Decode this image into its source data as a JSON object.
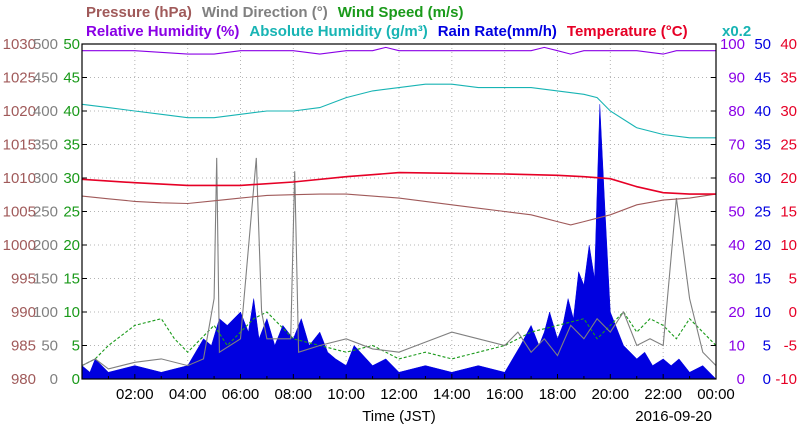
{
  "chart_data": {
    "type": "line",
    "header": {
      "row1": [
        {
          "text": "Pressure (hPa)",
          "color": "#a05a5a"
        },
        {
          "text": "Wind Direction (°)",
          "color": "#808080"
        },
        {
          "text": "Wind Speed (m/s)",
          "color": "#1a9a1a"
        }
      ],
      "row2": [
        {
          "text": "Relative Humidity (%)",
          "color": "#8a00e6"
        },
        {
          "text": "Absolute Humidity (g/m³)",
          "color": "#18b4b4"
        },
        {
          "text": "Rain Rate(mm/h)",
          "color": "#0000e0"
        },
        {
          "text": "Temperature (°C)",
          "color": "#e60026"
        }
      ],
      "scale_note": {
        "text": "x0.2",
        "color": "#18b4b4"
      }
    },
    "axes": {
      "pressure": {
        "ticks": [
          "980",
          "985",
          "990",
          "995",
          "1000",
          "1005",
          "1010",
          "1015",
          "1020",
          "1025",
          "1030"
        ],
        "range": [
          980,
          1030
        ],
        "color": "#a05a5a"
      },
      "wind_direction": {
        "ticks": [
          "0",
          "50",
          "100",
          "150",
          "200",
          "250",
          "300",
          "350",
          "400",
          "450",
          "500"
        ],
        "range": [
          0,
          500
        ],
        "color": "#808080"
      },
      "wind_speed": {
        "ticks": [
          "0",
          "5",
          "10",
          "15",
          "20",
          "25",
          "30",
          "35",
          "40",
          "45",
          "50"
        ],
        "range": [
          0,
          50
        ],
        "color": "#1a9a1a"
      },
      "humidity": {
        "ticks": [
          "0",
          "10",
          "20",
          "30",
          "40",
          "50",
          "60",
          "70",
          "80",
          "90",
          "100"
        ],
        "range": [
          0,
          100
        ],
        "color": "#8a00e6"
      },
      "rain_rate": {
        "ticks": [
          "0",
          "5",
          "10",
          "15",
          "20",
          "25",
          "30",
          "35",
          "40",
          "45",
          "50"
        ],
        "range": [
          0,
          50
        ],
        "color": "#0000e0"
      },
      "temperature": {
        "ticks": [
          "-10",
          "-5",
          "0",
          "5",
          "10",
          "15",
          "20",
          "25",
          "30",
          "35",
          "40"
        ],
        "range": [
          -10,
          40
        ],
        "color": "#e60026"
      }
    },
    "x_ticks": [
      "02:00",
      "04:00",
      "06:00",
      "08:00",
      "10:00",
      "12:00",
      "14:00",
      "16:00",
      "18:00",
      "20:00",
      "22:00",
      "00:00"
    ],
    "x_range_hours": [
      0,
      24
    ],
    "xlabel": "Time (JST)",
    "date": "2016-09-20",
    "grid": true,
    "series": [
      {
        "name": "Relative Humidity (%)",
        "axis": "humidity",
        "color": "#8a00e6",
        "x": [
          0,
          2,
          4,
          5,
          6,
          8,
          9,
          10,
          11,
          11.5,
          12,
          13,
          14,
          15,
          16,
          17,
          17.5,
          18,
          18.5,
          19,
          20,
          21,
          22,
          22.5,
          23,
          24
        ],
        "y": [
          98,
          98,
          97,
          97,
          98,
          98,
          97,
          98,
          98,
          99,
          98,
          98,
          98,
          98,
          98,
          98,
          99,
          98,
          97,
          98,
          98,
          98,
          97,
          98,
          98,
          98
        ]
      },
      {
        "name": "Absolute Humidity (g/m³)",
        "axis": "humidity",
        "color": "#18b4b4",
        "x": [
          0,
          1,
          2,
          3,
          4,
          5,
          6,
          7,
          8,
          9,
          10,
          11,
          12,
          13,
          14,
          15,
          16,
          17,
          18,
          19,
          19.5,
          20,
          21,
          22,
          23,
          24
        ],
        "y": [
          82,
          81,
          80,
          79,
          78,
          78,
          79,
          80,
          80,
          81,
          84,
          86,
          87,
          88,
          88,
          87,
          87,
          87,
          86,
          85,
          84,
          80,
          75,
          73,
          72,
          72
        ]
      },
      {
        "name": "Temperature (°C)",
        "axis": "temperature",
        "color": "#e60026",
        "x": [
          0,
          2,
          4,
          6,
          8,
          10,
          12,
          14,
          16,
          18,
          19,
          20,
          21,
          22,
          23,
          24
        ],
        "y": [
          19.8,
          19.3,
          18.9,
          18.9,
          19.4,
          20.2,
          20.8,
          20.7,
          20.6,
          20.4,
          20.2,
          19.9,
          18.7,
          17.8,
          17.6,
          17.6
        ]
      },
      {
        "name": "Pressure (hPa)",
        "axis": "pressure",
        "color": "#a05a5a",
        "x": [
          0,
          1,
          2,
          3,
          4,
          5,
          6,
          7,
          8,
          9,
          10,
          11,
          12,
          13,
          14,
          15,
          16,
          17,
          17.5,
          18,
          18.5,
          19,
          19.5,
          20,
          21,
          22,
          23,
          24
        ],
        "y": [
          1007.3,
          1006.9,
          1006.5,
          1006.3,
          1006.2,
          1006.6,
          1007.0,
          1007.4,
          1007.5,
          1007.6,
          1007.6,
          1007.3,
          1007.0,
          1006.5,
          1006.0,
          1005.5,
          1005.0,
          1004.5,
          1004.0,
          1003.5,
          1003.0,
          1003.5,
          1004.0,
          1004.5,
          1006.0,
          1006.7,
          1007.0,
          1007.6
        ]
      },
      {
        "name": "Wind Direction (°)",
        "axis": "wind_direction",
        "color": "#808080",
        "x": [
          0,
          0.5,
          1,
          2,
          3,
          4,
          4.6,
          5.0,
          5.1,
          5.2,
          6,
          6.6,
          6.8,
          7,
          7.9,
          8.05,
          8.2,
          9,
          10,
          11,
          12,
          13,
          14,
          15,
          16,
          16.5,
          17,
          17.5,
          18,
          18.5,
          19,
          19.5,
          20,
          20.5,
          21,
          21.5,
          22,
          22.5,
          23,
          23.5,
          24
        ],
        "y": [
          20,
          30,
          15,
          25,
          30,
          20,
          30,
          120,
          330,
          40,
          60,
          330,
          100,
          60,
          60,
          310,
          40,
          50,
          60,
          45,
          40,
          55,
          70,
          60,
          50,
          70,
          40,
          60,
          35,
          80,
          60,
          90,
          70,
          100,
          50,
          60,
          50,
          270,
          120,
          40,
          20
        ]
      },
      {
        "name": "Wind Speed (m/s)",
        "axis": "wind_speed",
        "color": "#1a9a1a",
        "x": [
          0,
          0.5,
          1,
          2,
          3,
          3.5,
          4,
          4.5,
          5,
          5.5,
          6,
          6.5,
          7,
          8,
          9,
          10,
          11,
          12,
          13,
          14,
          15,
          16,
          17,
          18,
          19,
          19.5,
          20,
          20.5,
          21,
          21.5,
          22,
          22.5,
          23,
          23.5,
          24
        ],
        "y": [
          2,
          3,
          5,
          8,
          9,
          6,
          4,
          6,
          8,
          5,
          7,
          9,
          10,
          6,
          5,
          4,
          5,
          3,
          4,
          3,
          4,
          5,
          7,
          8,
          9,
          6,
          8,
          10,
          7,
          9,
          8,
          6,
          9,
          7,
          5
        ]
      },
      {
        "name": "Rain Rate(mm/h)",
        "axis": "rain_rate",
        "type": "area",
        "color": "#0000e0",
        "x": [
          0,
          0.3,
          0.5,
          1,
          2,
          3,
          4,
          4.3,
          4.6,
          4.9,
          5.2,
          5.5,
          6,
          6.3,
          6.5,
          6.7,
          7,
          7.3,
          7.6,
          8,
          8.3,
          8.6,
          9,
          9.3,
          9.6,
          10,
          10.3,
          11,
          11.5,
          12,
          13,
          14,
          15,
          16,
          16.3,
          16.6,
          17,
          17.3,
          17.5,
          17.7,
          18,
          18.2,
          18.4,
          18.6,
          18.8,
          19,
          19.2,
          19.4,
          19.6,
          19.8,
          20,
          20.2,
          20.5,
          21,
          21.3,
          21.6,
          22,
          22.3,
          22.6,
          23,
          23.5,
          24
        ],
        "y": [
          2,
          1,
          3,
          1,
          2,
          1,
          2,
          4,
          6,
          5,
          9,
          8,
          10,
          7,
          12,
          6,
          9,
          5,
          8,
          6,
          9,
          5,
          7,
          4,
          3,
          2,
          5,
          2,
          3,
          1,
          2,
          1,
          2,
          1,
          3,
          5,
          8,
          5,
          7,
          10,
          6,
          8,
          12,
          9,
          16,
          14,
          20,
          15,
          41,
          25,
          10,
          8,
          5,
          3,
          4,
          2,
          3,
          2,
          3,
          1,
          2,
          0
        ]
      }
    ]
  }
}
